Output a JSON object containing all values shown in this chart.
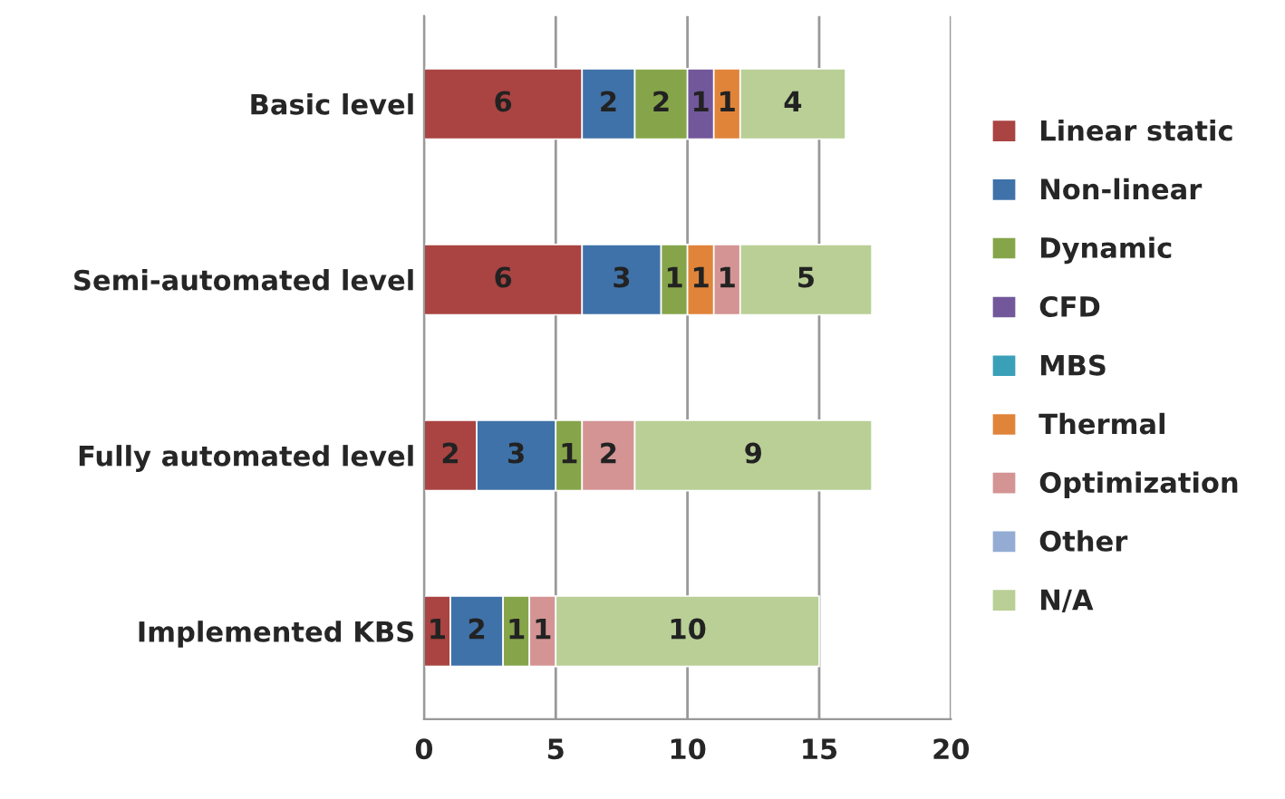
{
  "chart_data": {
    "type": "bar",
    "orientation": "horizontal",
    "stacked": true,
    "categories": [
      "Basic level",
      "Semi-automated level",
      "Fully automated level",
      "Implemented KBS"
    ],
    "series": [
      {
        "name": "Linear static",
        "color": "#a94442",
        "values": [
          6,
          6,
          2,
          1
        ]
      },
      {
        "name": "Non-linear",
        "color": "#3f72a8",
        "values": [
          2,
          3,
          3,
          2
        ]
      },
      {
        "name": "Dynamic",
        "color": "#86a54a",
        "values": [
          2,
          1,
          1,
          1
        ]
      },
      {
        "name": "CFD",
        "color": "#72589a",
        "values": [
          1,
          null,
          null,
          null
        ]
      },
      {
        "name": "MBS",
        "color": "#3aa0b8",
        "values": [
          null,
          null,
          null,
          null
        ]
      },
      {
        "name": "Thermal",
        "color": "#e0843a",
        "values": [
          1,
          1,
          null,
          null
        ]
      },
      {
        "name": "Optimization",
        "color": "#d49494",
        "values": [
          null,
          1,
          2,
          1
        ]
      },
      {
        "name": "Other",
        "color": "#94acd4",
        "values": [
          null,
          null,
          null,
          null
        ]
      },
      {
        "name": "N/A",
        "color": "#b9cf96",
        "values": [
          4,
          5,
          9,
          10
        ]
      }
    ],
    "xlim": [
      0,
      20
    ],
    "xticks": [
      0,
      5,
      10,
      15,
      20
    ],
    "grid": "x",
    "legend": "right",
    "data_labels": true
  }
}
